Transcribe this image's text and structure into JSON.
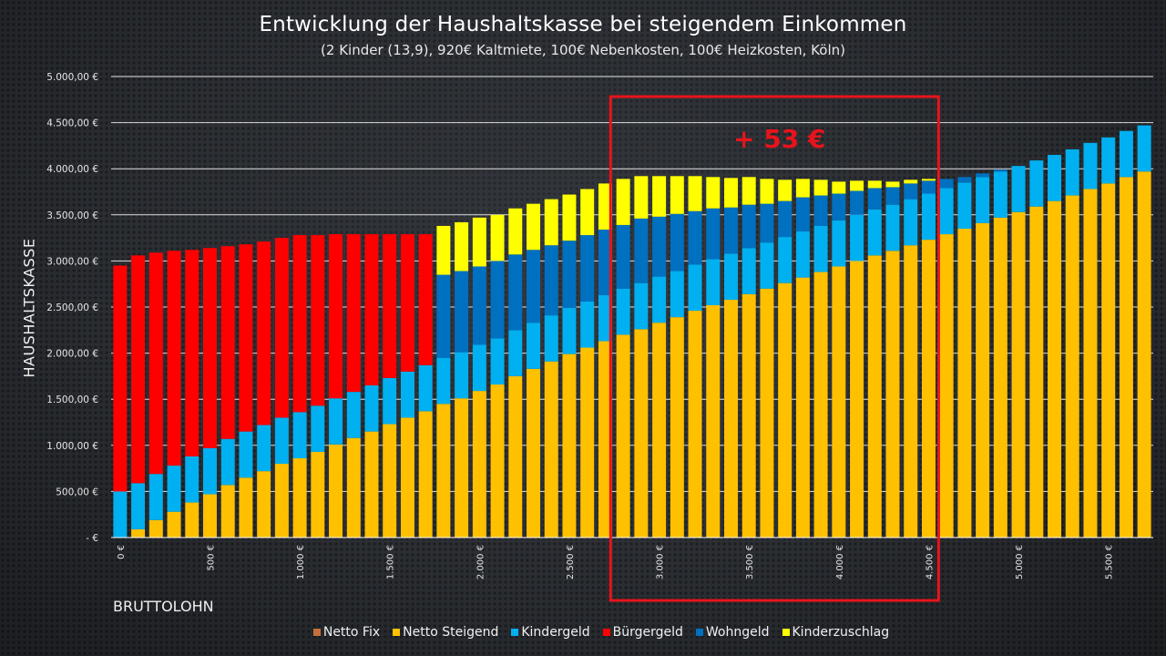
{
  "chart_data": {
    "type": "bar",
    "stacked": true,
    "title": "Entwicklung der Haushaltskasse  bei steigendem Einkommen",
    "subtitle": "(2 Kinder (13,9), 920€ Kaltmiete,  100€ Nebenkosten, 100€ Heizkosten, Köln)",
    "xlabel": "BRUTTOLOHN",
    "ylabel": "HAUSHALTSKASSE",
    "ylim": [
      0,
      5000
    ],
    "grid": true,
    "legend_position": "bottom",
    "y_ticks": [
      {
        "value": 0,
        "label": "-   €"
      },
      {
        "value": 500,
        "label": "500,00 €"
      },
      {
        "value": 1000,
        "label": "1.000,00 €"
      },
      {
        "value": 1500,
        "label": "1.500,00 €"
      },
      {
        "value": 2000,
        "label": "2.000,00 €"
      },
      {
        "value": 2500,
        "label": "2.500,00 €"
      },
      {
        "value": 3000,
        "label": "3.000,00 €"
      },
      {
        "value": 3500,
        "label": "3.500,00 €"
      },
      {
        "value": 4000,
        "label": "4.000,00 €"
      },
      {
        "value": 4500,
        "label": "4.500,00 €"
      },
      {
        "value": 5000,
        "label": "5.000,00 €"
      }
    ],
    "x_tick_labels": [
      {
        "index": 0,
        "label": "0 €"
      },
      {
        "index": 5,
        "label": "500 €"
      },
      {
        "index": 10,
        "label": "1.000 €"
      },
      {
        "index": 15,
        "label": "1.500 €"
      },
      {
        "index": 20,
        "label": "2.000 €"
      },
      {
        "index": 25,
        "label": "2.500 €"
      },
      {
        "index": 30,
        "label": "3.000 €"
      },
      {
        "index": 35,
        "label": "3.500 €"
      },
      {
        "index": 40,
        "label": "4.000 €"
      },
      {
        "index": 45,
        "label": "4.500 €"
      },
      {
        "index": 50,
        "label": "5.000 €"
      },
      {
        "index": 55,
        "label": "5.500 €"
      }
    ],
    "categories": [
      0,
      100,
      200,
      300,
      400,
      500,
      600,
      700,
      800,
      900,
      1000,
      1100,
      1200,
      1300,
      1400,
      1500,
      1600,
      1700,
      1800,
      1900,
      2000,
      2100,
      2200,
      2300,
      2400,
      2500,
      2600,
      2700,
      2800,
      2900,
      3000,
      3100,
      3200,
      3300,
      3400,
      3500,
      3600,
      3700,
      3800,
      3900,
      4000,
      4100,
      4200,
      4300,
      4400,
      4500,
      4600,
      4700,
      4800,
      4900,
      5000,
      5100,
      5200,
      5300,
      5400,
      5500,
      5600,
      5700
    ],
    "series": [
      {
        "name": "Netto Fix",
        "color": "#c5703a",
        "values": [
          0,
          0,
          0,
          0,
          0,
          0,
          0,
          0,
          0,
          0,
          0,
          0,
          0,
          0,
          0,
          0,
          0,
          0,
          0,
          0,
          0,
          0,
          0,
          0,
          0,
          0,
          0,
          0,
          0,
          0,
          0,
          0,
          0,
          0,
          0,
          0,
          0,
          0,
          0,
          0,
          0,
          0,
          0,
          0,
          0,
          0,
          0,
          0,
          0,
          0,
          0,
          0,
          0,
          0,
          0,
          0,
          0,
          0
        ]
      },
      {
        "name": "Netto Steigend",
        "color": "#ffc000",
        "values": [
          0,
          90,
          190,
          280,
          380,
          470,
          570,
          650,
          720,
          800,
          860,
          930,
          1010,
          1080,
          1150,
          1230,
          1300,
          1370,
          1450,
          1510,
          1590,
          1660,
          1750,
          1830,
          1910,
          1990,
          2060,
          2130,
          2200,
          2260,
          2330,
          2390,
          2460,
          2520,
          2580,
          2640,
          2700,
          2760,
          2820,
          2880,
          2940,
          3000,
          3060,
          3110,
          3170,
          3230,
          3290,
          3350,
          3410,
          3470,
          3530,
          3590,
          3650,
          3710,
          3780,
          3840,
          3910,
          3970
        ]
      },
      {
        "name": "Kindergeld",
        "color": "#00b0f0",
        "values": [
          500,
          500,
          500,
          500,
          500,
          500,
          500,
          500,
          500,
          500,
          500,
          500,
          500,
          500,
          500,
          500,
          500,
          500,
          500,
          500,
          500,
          500,
          500,
          500,
          500,
          500,
          500,
          500,
          500,
          500,
          500,
          500,
          500,
          500,
          500,
          500,
          500,
          500,
          500,
          500,
          500,
          500,
          500,
          500,
          500,
          500,
          500,
          500,
          500,
          500,
          500,
          500,
          500,
          500,
          500,
          500,
          500,
          500
        ]
      },
      {
        "name": "Bürgergeld",
        "color": "#ff0000",
        "values": [
          2450,
          2470,
          2400,
          2330,
          2240,
          2170,
          2090,
          2030,
          1990,
          1950,
          1920,
          1850,
          1780,
          1710,
          1640,
          1560,
          1490,
          1420,
          0,
          0,
          0,
          0,
          0,
          0,
          0,
          0,
          0,
          0,
          0,
          0,
          0,
          0,
          0,
          0,
          0,
          0,
          0,
          0,
          0,
          0,
          0,
          0,
          0,
          0,
          0,
          0,
          0,
          0,
          0,
          0,
          0,
          0,
          0,
          0,
          0,
          0,
          0,
          0
        ]
      },
      {
        "name": "Wohngeld",
        "color": "#0070c0",
        "values": [
          0,
          0,
          0,
          0,
          0,
          0,
          0,
          0,
          0,
          0,
          0,
          0,
          0,
          0,
          0,
          0,
          0,
          0,
          900,
          880,
          850,
          840,
          820,
          790,
          760,
          730,
          720,
          710,
          690,
          700,
          650,
          620,
          580,
          550,
          500,
          470,
          420,
          390,
          370,
          330,
          290,
          260,
          230,
          190,
          170,
          140,
          100,
          60,
          40,
          20,
          0,
          0,
          0,
          0,
          0,
          0,
          0,
          0
        ]
      },
      {
        "name": "Kinderzuschlag",
        "color": "#ffff00",
        "values": [
          0,
          0,
          0,
          0,
          0,
          0,
          0,
          0,
          0,
          0,
          0,
          0,
          0,
          0,
          0,
          0,
          0,
          0,
          530,
          530,
          530,
          500,
          500,
          500,
          500,
          500,
          500,
          500,
          500,
          460,
          440,
          410,
          380,
          340,
          320,
          300,
          270,
          230,
          200,
          170,
          130,
          110,
          80,
          60,
          40,
          20,
          0,
          0,
          0,
          0,
          0,
          0,
          0,
          0,
          0,
          0,
          0,
          0
        ]
      }
    ],
    "annotations": [
      {
        "type": "highlight-box",
        "x_from": 2800,
        "x_to": 4600,
        "color": "#e8141b"
      },
      {
        "type": "text",
        "text": "+ 53 €",
        "color": "#e8141b"
      }
    ]
  },
  "legend": [
    {
      "label": "Netto Fix",
      "color": "#c5703a"
    },
    {
      "label": "Netto Steigend",
      "color": "#ffc000"
    },
    {
      "label": "Kindergeld",
      "color": "#00b0f0"
    },
    {
      "label": "Bürgergeld",
      "color": "#ff0000"
    },
    {
      "label": "Wohngeld",
      "color": "#0070c0"
    },
    {
      "label": "Kinderzuschlag",
      "color": "#ffff00"
    }
  ]
}
